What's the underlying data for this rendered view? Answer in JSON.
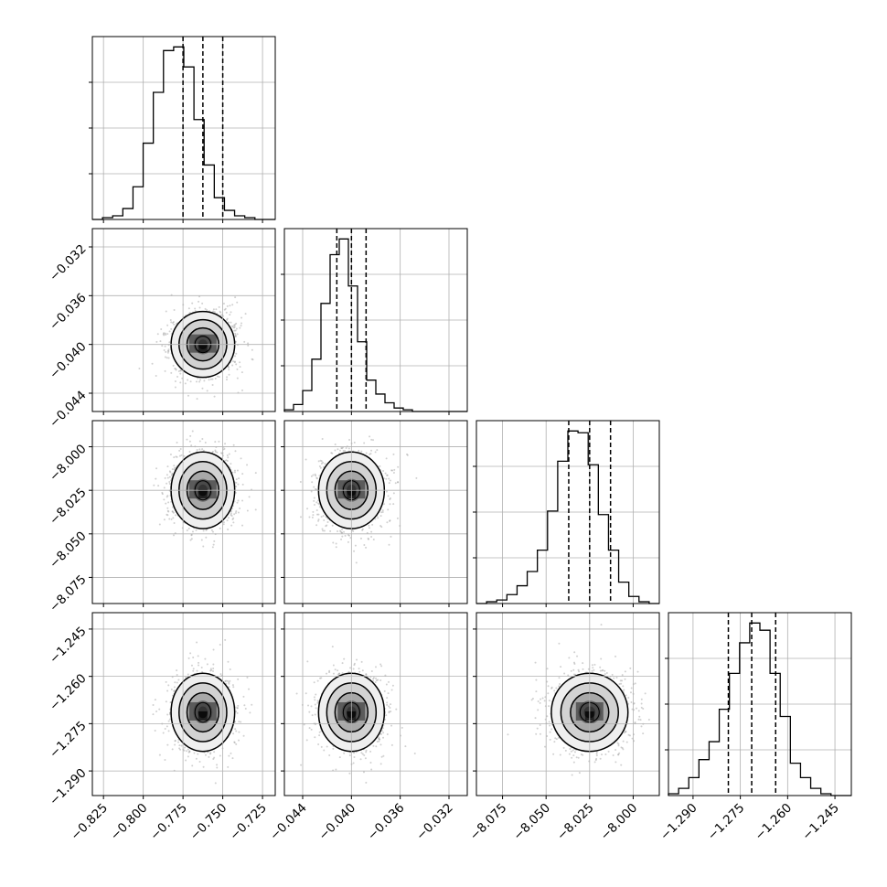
{
  "chart_data": {
    "type": "corner",
    "parameters": 4,
    "hist_color": "#000000",
    "quantile_line_style": "dashed",
    "grid": true,
    "ranges": [
      [
        -0.832,
        -0.717
      ],
      [
        -0.0455,
        -0.0305
      ],
      [
        -8.09,
        -7.985
      ],
      [
        -1.2978,
        -1.2398
      ]
    ],
    "ticks": [
      [
        "−0.825",
        "−0.800",
        "−0.775",
        "−0.750",
        "−0.725"
      ],
      [
        "−0.044",
        "−0.040",
        "−0.036",
        "−0.032"
      ],
      [
        "−8.075",
        "−8.050",
        "−8.025",
        "−8.000"
      ],
      [
        "−1.290",
        "−1.275",
        "−1.260",
        "−1.245"
      ]
    ],
    "tick_values": [
      [
        -0.825,
        -0.8,
        -0.775,
        -0.75,
        -0.725
      ],
      [
        -0.044,
        -0.04,
        -0.036,
        -0.032
      ],
      [
        -8.075,
        -8.05,
        -8.025,
        -8.0
      ],
      [
        -1.29,
        -1.275,
        -1.26,
        -1.245
      ]
    ],
    "quantiles": [
      [
        -0.775,
        -0.7625,
        -0.75
      ],
      [
        -0.0412,
        -0.04,
        -0.0388
      ],
      [
        -8.037,
        -8.025,
        -8.013
      ],
      [
        -1.2788,
        -1.2714,
        -1.2638
      ]
    ],
    "marginal_histograms": [
      {
        "param": 0,
        "counts": [
          0,
          1,
          2,
          6,
          18,
          42,
          70,
          93,
          95,
          84,
          55,
          30,
          12,
          5,
          2,
          1,
          0,
          0
        ]
      },
      {
        "param": 1,
        "counts": [
          1,
          4,
          12,
          30,
          62,
          90,
          99,
          72,
          40,
          18,
          10,
          5,
          2,
          1,
          0,
          0,
          0,
          0,
          0,
          0
        ]
      },
      {
        "param": 2,
        "counts": [
          0,
          1,
          2,
          5,
          10,
          18,
          30,
          52,
          80,
          97,
          96,
          78,
          50,
          30,
          12,
          4,
          1,
          0
        ]
      },
      {
        "param": 3,
        "counts": [
          1,
          4,
          10,
          20,
          30,
          48,
          68,
          85,
          96,
          92,
          68,
          44,
          18,
          10,
          4,
          1,
          0,
          0
        ]
      }
    ],
    "joint_2d": [
      {
        "x": 0,
        "y": 1,
        "mean": [
          -0.7625,
          -0.04
        ],
        "sd": [
          0.01,
          0.00135
        ]
      },
      {
        "x": 0,
        "y": 2,
        "mean": [
          -0.7625,
          -8.025
        ],
        "sd": [
          0.01,
          0.011
        ]
      },
      {
        "x": 1,
        "y": 2,
        "mean": [
          -0.04,
          -8.025
        ],
        "sd": [
          0.00135,
          0.011
        ]
      },
      {
        "x": 0,
        "y": 3,
        "mean": [
          -0.7625,
          -1.2714
        ],
        "sd": [
          0.01,
          0.0062
        ]
      },
      {
        "x": 1,
        "y": 3,
        "mean": [
          -0.04,
          -1.2714
        ],
        "sd": [
          0.00135,
          0.0062
        ]
      },
      {
        "x": 2,
        "y": 3,
        "mean": [
          -8.025,
          -1.2714
        ],
        "sd": [
          0.011,
          0.0062
        ]
      }
    ],
    "contour_levels_sigma": [
      0.5,
      1.0,
      1.5,
      2.0
    ]
  }
}
